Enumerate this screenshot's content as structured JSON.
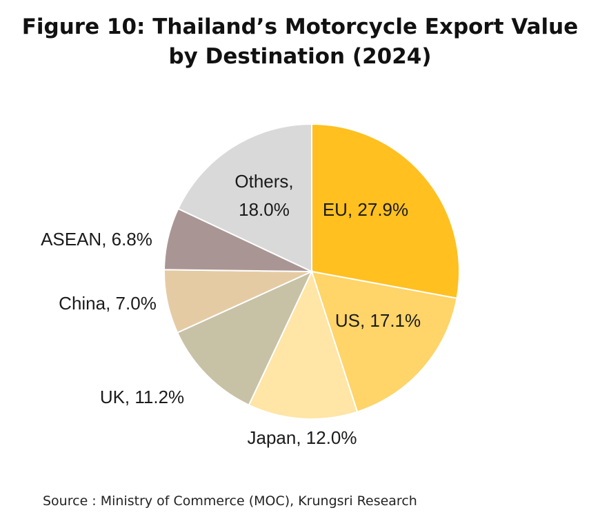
{
  "title_line1": "Figure 10: Thailand’s Motorcycle Export Value",
  "title_line2": "by Destination (2024)",
  "source": "Source : Ministry of Commerce (MOC), Krungsri Research",
  "chart_data": {
    "type": "pie",
    "title": "Figure 10: Thailand’s Motorcycle Export Value by Destination (2024)",
    "slices": [
      {
        "label": "EU",
        "value": 27.9,
        "text": "EU, 27.9%",
        "color": "#FFC020"
      },
      {
        "label": "US",
        "value": 17.1,
        "text": "US, 17.1%",
        "color": "#FFD468"
      },
      {
        "label": "Japan",
        "value": 12.0,
        "text": "Japan, 12.0%",
        "color": "#FFE5A6"
      },
      {
        "label": "UK",
        "value": 11.2,
        "text": "UK, 11.2%",
        "color": "#C7C1A6"
      },
      {
        "label": "China",
        "value": 7.0,
        "text": "China, 7.0%",
        "color": "#E5CBA4"
      },
      {
        "label": "ASEAN",
        "value": 6.8,
        "text": "ASEAN, 6.8%",
        "color": "#A99694"
      },
      {
        "label": "Others",
        "value": 18.0,
        "text_lines": [
          "Others,",
          "18.0%"
        ],
        "color": "#D9D9D9"
      }
    ],
    "start": "12 o'clock",
    "direction": "clockwise"
  }
}
